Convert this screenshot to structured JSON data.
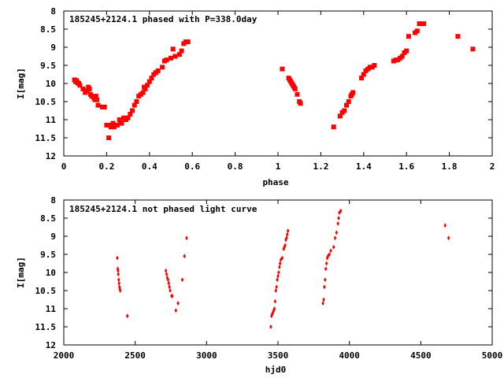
{
  "chart_data": [
    {
      "type": "scatter",
      "title": "185245+2124.1 phased with P=338.0day",
      "xlabel": "phase",
      "ylabel": "I[mag]",
      "xlim": [
        0,
        2
      ],
      "ylim": [
        12,
        8
      ],
      "y_inverted": true,
      "x_ticks": [
        "0",
        "0.2",
        "0.4",
        "0.6",
        "0.8",
        "1",
        "1.2",
        "1.4",
        "1.6",
        "1.8",
        "2"
      ],
      "x_tick_values": [
        0,
        0.2,
        0.4,
        0.6,
        0.8,
        1,
        1.2,
        1.4,
        1.6,
        1.8,
        2
      ],
      "y_ticks": [
        "8",
        "8.5",
        "9",
        "9.5",
        "10",
        "10.5",
        "11",
        "11.5",
        "12"
      ],
      "y_tick_values": [
        8,
        8.5,
        9,
        9.5,
        10,
        10.5,
        11,
        11.5,
        12
      ],
      "marker_color": "#ff0000",
      "series": [
        {
          "x": [
            0.05,
            0.055,
            0.06,
            0.065,
            0.07,
            0.075,
            0.09,
            0.1,
            0.11,
            0.115,
            0.12,
            0.125,
            0.13,
            0.14,
            0.145,
            0.15,
            0.155,
            0.16,
            0.18,
            0.19,
            0.2,
            0.21,
            0.215,
            0.22,
            0.23,
            0.235,
            0.24,
            0.25,
            0.26,
            0.265,
            0.27,
            0.28,
            0.29,
            0.3,
            0.31,
            0.32,
            0.33,
            0.34,
            0.35,
            0.36,
            0.37,
            0.375,
            0.38,
            0.39,
            0.4,
            0.41,
            0.42,
            0.43,
            0.44,
            0.46,
            0.47,
            0.48,
            0.5,
            0.51,
            0.52,
            0.54,
            0.55,
            0.56,
            0.57,
            0.58
          ],
          "y": [
            9.9,
            9.95,
            9.92,
            9.98,
            10.0,
            10.05,
            10.15,
            10.25,
            10.2,
            10.1,
            10.15,
            10.3,
            10.35,
            10.4,
            10.45,
            10.35,
            10.45,
            10.6,
            10.65,
            10.65,
            11.15,
            11.5,
            11.15,
            11.2,
            11.1,
            11.2,
            11.15,
            11.15,
            11.0,
            11.05,
            11.1,
            10.95,
            11.0,
            10.95,
            10.85,
            10.75,
            10.6,
            10.5,
            10.35,
            10.3,
            10.25,
            10.1,
            10.15,
            10.05,
            9.95,
            9.85,
            9.75,
            9.7,
            9.65,
            9.55,
            9.38,
            9.35,
            9.3,
            9.05,
            9.25,
            9.2,
            9.1,
            8.9,
            8.85,
            8.85
          ]
        },
        {
          "x": [
            1.02,
            1.05,
            1.055,
            1.06,
            1.065,
            1.07,
            1.075,
            1.08,
            1.09,
            1.1,
            1.105,
            1.26,
            1.29,
            1.3,
            1.31,
            1.32,
            1.33,
            1.34,
            1.345,
            1.35,
            1.39,
            1.4,
            1.41,
            1.42,
            1.43,
            1.44,
            1.45,
            1.54,
            1.55,
            1.56,
            1.57,
            1.58,
            1.59,
            1.6,
            1.61,
            1.64,
            1.65,
            1.66,
            1.68,
            1.84,
            1.91
          ],
          "y": [
            9.6,
            9.85,
            9.9,
            9.95,
            10.0,
            10.05,
            10.1,
            10.15,
            10.3,
            10.5,
            10.55,
            11.2,
            10.9,
            10.8,
            10.75,
            10.6,
            10.5,
            10.35,
            10.3,
            10.25,
            9.85,
            9.75,
            9.65,
            9.6,
            9.55,
            9.55,
            9.5,
            9.38,
            9.35,
            9.35,
            9.3,
            9.25,
            9.15,
            9.1,
            8.7,
            8.6,
            8.55,
            8.35,
            8.35,
            8.7,
            9.05
          ]
        }
      ]
    },
    {
      "type": "scatter",
      "title": "185245+2124.1 not phased light curve",
      "xlabel": "hjd0",
      "ylabel": "I[mag]",
      "xlim": [
        2000,
        5000
      ],
      "ylim": [
        12,
        8
      ],
      "y_inverted": true,
      "x_ticks": [
        "2000",
        "2500",
        "3000",
        "3500",
        "4000",
        "4500",
        "5000"
      ],
      "x_tick_values": [
        2000,
        2500,
        3000,
        3500,
        4000,
        4500,
        5000
      ],
      "y_ticks": [
        "8",
        "8.5",
        "9",
        "9.5",
        "10",
        "10.5",
        "11",
        "11.5",
        "12"
      ],
      "y_tick_values": [
        8,
        8.5,
        9,
        9.5,
        10,
        10.5,
        11,
        11.5,
        12
      ],
      "marker_color": "#ff0000",
      "series": [
        {
          "x": [
            2375,
            2378,
            2380,
            2382,
            2385,
            2387,
            2390,
            2393,
            2395,
            2445,
            2715,
            2720,
            2725,
            2730,
            2735,
            2740,
            2745,
            2755,
            2760,
            2785,
            2800,
            2830,
            2845,
            2860,
            3450,
            3455,
            3460,
            3465,
            3470,
            3475,
            3480,
            3485,
            3490,
            3495,
            3500,
            3505,
            3510,
            3515,
            3520,
            3530,
            3540,
            3545,
            3550,
            3555,
            3560,
            3565,
            3570,
            3815,
            3820,
            3825,
            3830,
            3835,
            3840,
            3845,
            3850,
            3860,
            3870,
            3890,
            3900,
            3910,
            3920,
            3925,
            3930,
            3940,
            4670,
            4695
          ],
          "y": [
            9.6,
            9.9,
            9.95,
            10.05,
            10.2,
            10.3,
            10.4,
            10.45,
            10.5,
            11.2,
            9.95,
            10.05,
            10.15,
            10.2,
            10.3,
            10.4,
            10.5,
            10.65,
            10.65,
            11.05,
            10.85,
            10.2,
            9.55,
            9.05,
            11.5,
            11.2,
            11.15,
            11.1,
            11.05,
            11.0,
            10.8,
            10.5,
            10.4,
            10.2,
            10.1,
            10.0,
            9.85,
            9.75,
            9.65,
            9.6,
            9.35,
            9.3,
            9.25,
            9.1,
            9.05,
            8.95,
            8.85,
            10.85,
            10.75,
            10.4,
            10.2,
            9.9,
            9.75,
            9.6,
            9.55,
            9.5,
            9.4,
            9.3,
            9.05,
            8.9,
            8.65,
            8.5,
            8.35,
            8.3,
            8.7,
            9.05
          ]
        }
      ]
    }
  ]
}
